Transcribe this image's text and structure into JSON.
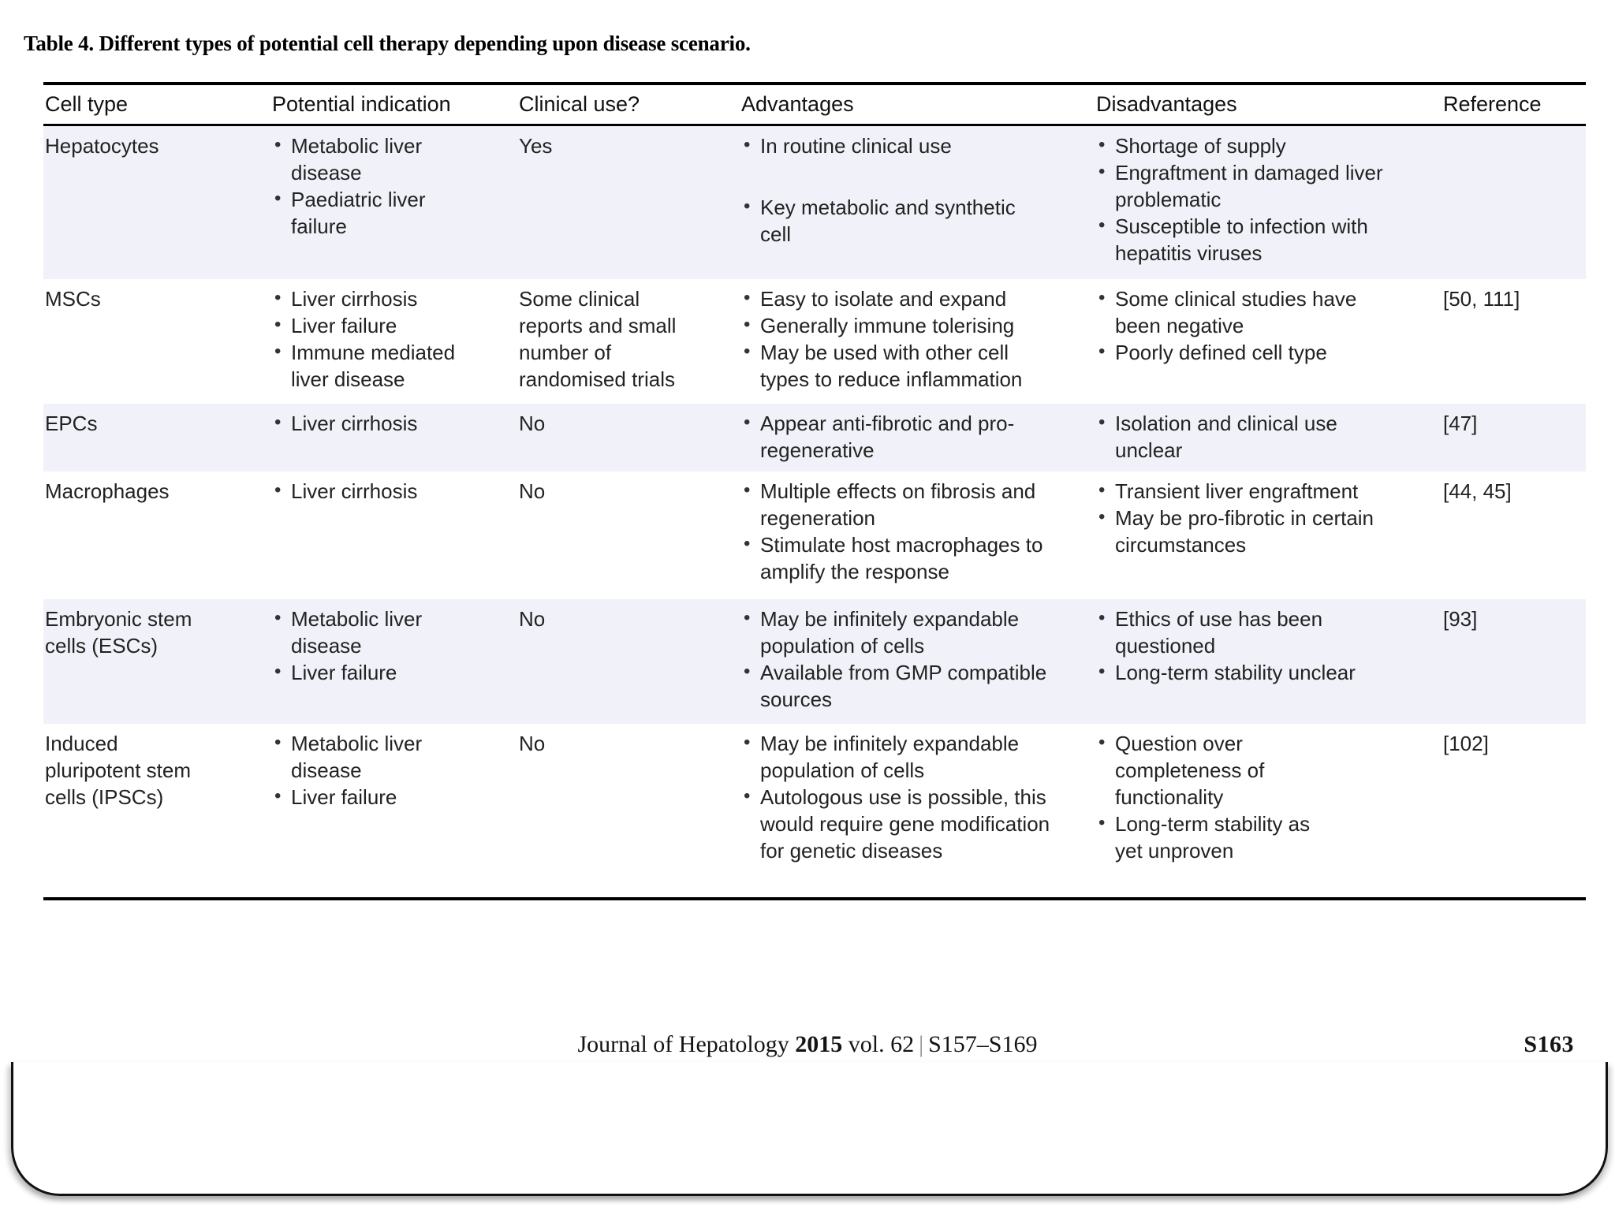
{
  "caption": "Table 4. Different types of potential cell therapy depending upon disease scenario.",
  "table": {
    "columns": [
      "Cell type",
      "Potential indication",
      "Clinical use?",
      "Advantages",
      "Disadvantages",
      "Reference"
    ],
    "rows": [
      {
        "cell_type": "Hepatocytes",
        "potential_indication": [
          "Metabolic liver disease",
          "Paediatric liver failure"
        ],
        "clinical_use": "Yes",
        "advantages": [
          "In routine clinical use",
          "Key metabolic and synthetic cell"
        ],
        "disadvantages": [
          "Shortage of supply",
          "Engraftment in damaged liver problematic",
          "Susceptible to infection with hepatitis viruses"
        ],
        "reference": "",
        "shaded": true
      },
      {
        "cell_type": "MSCs",
        "potential_indication": [
          "Liver cirrhosis",
          "Liver failure",
          "Immune mediated liver disease"
        ],
        "clinical_use": "Some clinical reports and small number of randomised trials",
        "advantages": [
          "Easy to isolate and expand",
          "Generally immune tolerising",
          "May be used with other cell types to reduce inflammation"
        ],
        "disadvantages": [
          "Some clinical studies have been negative",
          "Poorly defined cell type"
        ],
        "reference": "[50, 111]",
        "shaded": false
      },
      {
        "cell_type": "EPCs",
        "potential_indication": [
          "Liver cirrhosis"
        ],
        "clinical_use": "No",
        "advantages": [
          "Appear anti-fibrotic and pro-regenerative"
        ],
        "disadvantages": [
          "Isolation and clinical use unclear"
        ],
        "reference": "[47]",
        "shaded": true
      },
      {
        "cell_type": "Macrophages",
        "potential_indication": [
          "Liver cirrhosis"
        ],
        "clinical_use": "No",
        "advantages": [
          "Multiple effects on fibrosis and regeneration",
          "Stimulate host macrophages to amplify the response"
        ],
        "disadvantages": [
          "Transient liver engraftment",
          "May be pro-fibrotic in certain circumstances"
        ],
        "reference": "[44, 45]",
        "shaded": false
      },
      {
        "cell_type": "Embryonic stem cells (ESCs)",
        "potential_indication": [
          "Metabolic liver disease",
          "Liver failure"
        ],
        "clinical_use": "No",
        "advantages": [
          "May be infinitely expandable population of cells",
          "Available from GMP compatible sources"
        ],
        "disadvantages": [
          "Ethics of use has been questioned",
          "Long-term stability unclear"
        ],
        "reference": "[93]",
        "shaded": true
      },
      {
        "cell_type": "Induced pluripotent stem cells (IPSCs)",
        "potential_indication": [
          "Metabolic liver disease",
          "Liver failure"
        ],
        "clinical_use": "No",
        "advantages": [
          "May be infinitely expandable population of cells",
          "Autologous use is possible, this would require gene modification for genetic diseases"
        ],
        "disadvantages": [
          "Question over completeness of functionality",
          "Long-term stability as yet unproven"
        ],
        "reference": "[102]",
        "shaded": false
      }
    ]
  },
  "footer": {
    "journal": "Journal of Hepatology",
    "year": "2015",
    "volume": "vol. 62",
    "separator": "|",
    "page_range": "S157–S169",
    "page_number": "S163"
  },
  "colors": {
    "row_shade": "#f1f2f9",
    "rule": "#000000",
    "text": "#222222"
  }
}
